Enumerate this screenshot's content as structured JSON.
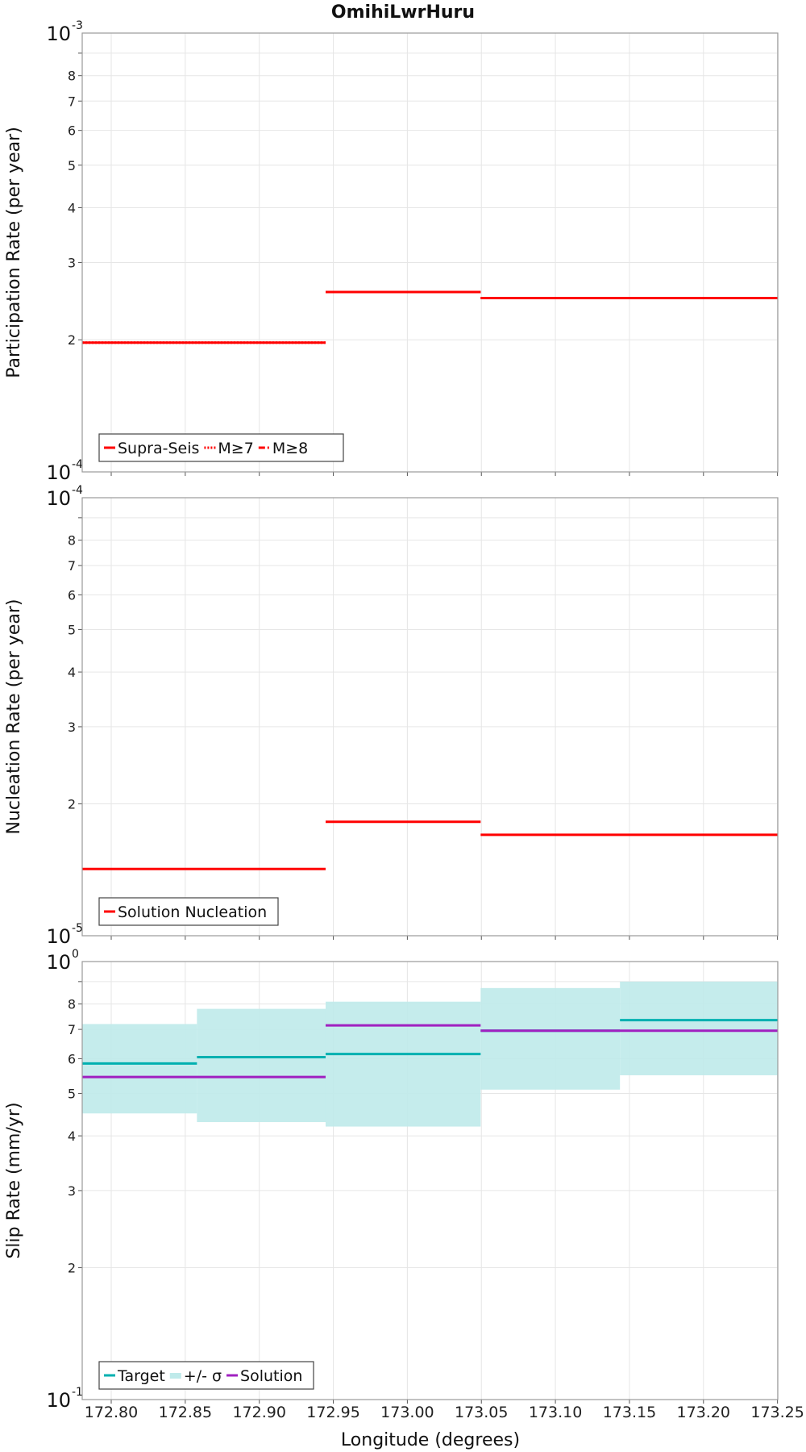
{
  "title": "OmihiLwrHuru",
  "xlabel": "Longitude (degrees)",
  "xticks": [
    "172.80",
    "172.85",
    "172.90",
    "172.95",
    "173.00",
    "173.05",
    "173.10",
    "173.15",
    "173.20",
    "173.25"
  ],
  "xlim": [
    172.7804,
    173.2502
  ],
  "chart_data": [
    {
      "type": "line",
      "ylabel": "Participation Rate (per year)",
      "yscale": "log",
      "ylim": [
        0.0001,
        0.001
      ],
      "ytick_mantissas": [
        "2",
        "3",
        "4",
        "5",
        "6",
        "7",
        "8"
      ],
      "ydecade_labels": [
        {
          "base": "10",
          "exp": "-4"
        },
        {
          "base": "10",
          "exp": "-3"
        }
      ],
      "series": [
        {
          "name": "Supra-Seis",
          "color": "#ff0000",
          "style": "solid",
          "segments": [
            [
              172.7804,
              172.9448,
              0.000197
            ],
            [
              172.9448,
              173.0495,
              0.000257
            ],
            [
              173.0495,
              173.2502,
              0.000249
            ]
          ]
        },
        {
          "name": "M≥7",
          "color": "#ff0000",
          "style": "dotted",
          "segments": [
            [
              172.7804,
              172.9448,
              0.000197
            ],
            [
              172.9448,
              173.0495,
              0.000257
            ],
            [
              173.0495,
              173.2502,
              0.000249
            ]
          ]
        },
        {
          "name": "M≥8",
          "color": "#ff0000",
          "style": "dashdot",
          "segments": []
        }
      ]
    },
    {
      "type": "line",
      "ylabel": "Nucleation Rate (per year)",
      "yscale": "log",
      "ylim": [
        1e-05,
        0.0001
      ],
      "ytick_mantissas": [
        "2",
        "3",
        "4",
        "5",
        "6",
        "7",
        "8"
      ],
      "ydecade_labels": [
        {
          "base": "10",
          "exp": "-5"
        },
        {
          "base": "10",
          "exp": "-4"
        }
      ],
      "series": [
        {
          "name": "Solution Nucleation",
          "color": "#ff0000",
          "style": "solid",
          "segments": [
            [
              172.7804,
              172.9448,
              1.42e-05
            ],
            [
              172.9448,
              173.0495,
              1.82e-05
            ],
            [
              173.0495,
              173.2502,
              1.7e-05
            ]
          ]
        }
      ]
    },
    {
      "type": "line",
      "ylabel": "Slip Rate (mm/yr)",
      "yscale": "log",
      "ylim": [
        0.1,
        1
      ],
      "ytick_mantissas": [
        "2",
        "3",
        "4",
        "5",
        "6",
        "7",
        "8"
      ],
      "ydecade_labels": [
        {
          "base": "10",
          "exp": "-1"
        },
        {
          "base": "10",
          "exp": "0"
        }
      ],
      "band": {
        "name": "+/- σ",
        "color": "#bfeaea",
        "segments": [
          [
            172.7804,
            172.8579,
            0.45,
            0.72
          ],
          [
            172.8579,
            172.9448,
            0.43,
            0.78
          ],
          [
            172.9448,
            173.0495,
            0.42,
            0.81
          ],
          [
            173.0495,
            173.1436,
            0.51,
            0.87
          ],
          [
            173.1436,
            173.2502,
            0.55,
            0.9
          ]
        ]
      },
      "series": [
        {
          "name": "Target",
          "color": "#00b0b0",
          "style": "solid",
          "segments": [
            [
              172.7804,
              172.8579,
              0.585
            ],
            [
              172.8579,
              172.9448,
              0.605
            ],
            [
              172.9448,
              173.0495,
              0.615
            ],
            [
              173.0495,
              173.1436,
              0.695
            ],
            [
              173.1436,
              173.2502,
              0.735
            ]
          ]
        },
        {
          "name": "Solution",
          "color": "#a020c0",
          "style": "solid",
          "segments": [
            [
              172.7804,
              172.9448,
              0.545
            ],
            [
              172.9448,
              173.0495,
              0.715
            ],
            [
              173.0495,
              173.2502,
              0.695
            ]
          ]
        }
      ]
    }
  ]
}
